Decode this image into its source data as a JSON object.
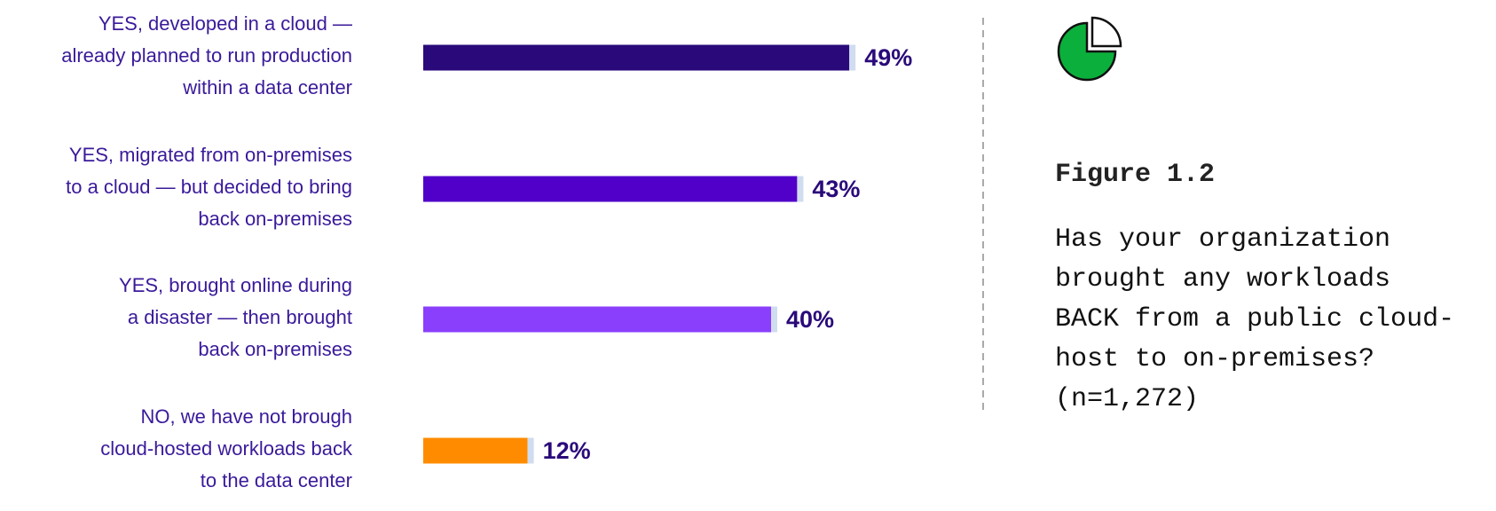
{
  "chart_data": {
    "type": "barh",
    "categories": [
      "YES, developed in a cloud —\nalready planned to run production\nwithin a data center",
      "YES, migrated from on-premises\nto a cloud — but decided to bring\nback on-premises",
      "YES, brought online during\na disaster — then brought\nback on-premises",
      "NO, we have not brough\ncloud-hosted workloads back\nto the data center"
    ],
    "values": [
      49,
      43,
      40,
      12
    ],
    "value_labels": [
      "49%",
      "43%",
      "40%",
      "12%"
    ],
    "colors": [
      "#2a0a7a",
      "#5000c8",
      "#8a3ffc",
      "#ff8c00"
    ]
  },
  "figure": {
    "label": "Figure 1.2",
    "question": "Has your organization\nbrought any workloads\nBACK from a public cloud-\nhost to on-premises?\n(n=1,272)"
  }
}
